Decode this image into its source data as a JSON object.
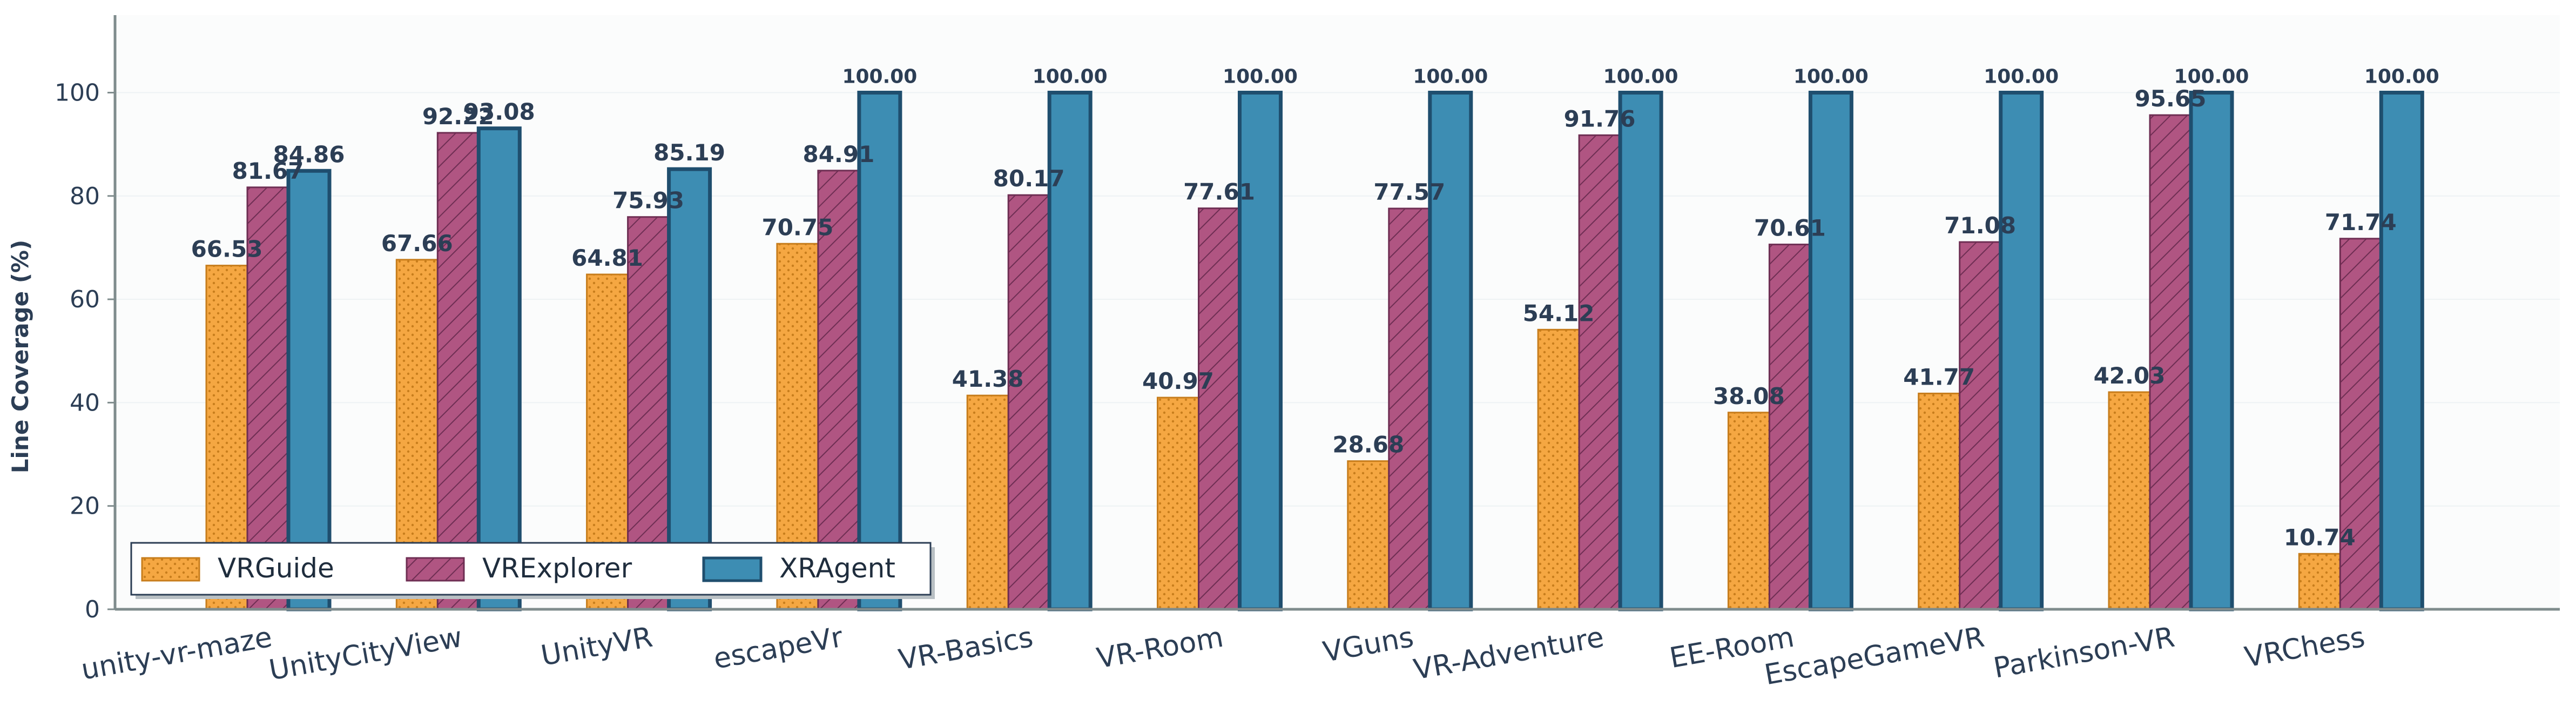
{
  "chart_data": {
    "type": "bar",
    "title": "",
    "xlabel": "",
    "ylabel": "Line Coverage (%)",
    "ylim": [
      0,
      115
    ],
    "yticks": [
      0,
      20,
      40,
      60,
      80,
      100
    ],
    "grid": "horizontal",
    "legend_position": "lower-left",
    "categories": [
      "unity-vr-maze",
      "UnityCityView",
      "UnityVR",
      "escapeVr",
      "VR-Basics",
      "VR-Room",
      "VGuns",
      "VR-Adventure",
      "EE-Room",
      "EscapeGameVR",
      "Parkinson-VR",
      "VRChess"
    ],
    "series": [
      {
        "name": "VRGuide",
        "color": "#f5a742",
        "stroke": "#c77d1c",
        "pattern": "dots",
        "values": [
          66.53,
          67.66,
          64.81,
          70.75,
          41.38,
          40.97,
          28.68,
          54.12,
          38.08,
          41.77,
          42.03,
          10.74
        ],
        "labels": [
          "66.53",
          "67.66",
          "64.81",
          "70.75",
          "41.38",
          "40.97",
          "28.68",
          "54.12",
          "38.08",
          "41.77",
          "42.03",
          "10.74"
        ]
      },
      {
        "name": "VRExplorer",
        "color": "#b05582",
        "stroke": "#6e2e53",
        "pattern": "hatch",
        "values": [
          81.67,
          92.22,
          75.93,
          84.91,
          80.17,
          77.61,
          77.57,
          91.76,
          70.61,
          71.08,
          95.65,
          71.74
        ],
        "labels": [
          "81.67",
          "92.22",
          "75.93",
          "84.91",
          "80.17",
          "77.61",
          "77.57",
          "91.76",
          "70.61",
          "71.08",
          "95.65",
          "71.74"
        ]
      },
      {
        "name": "XRAgent",
        "color": "#3d8db3",
        "stroke": "#1f4e6e",
        "pattern": "solid",
        "values": [
          84.86,
          93.08,
          85.19,
          100,
          100,
          100,
          100,
          100,
          100,
          100,
          100,
          100
        ],
        "labels": [
          "84.86",
          "93.08",
          "85.19",
          "100.00",
          "100.00",
          "100.00",
          "100.00",
          "100.00",
          "100.00",
          "100.00",
          "100.00",
          "100.00"
        ]
      }
    ],
    "colors": {
      "text": "#2c3e55",
      "axis": "#7f8c8d",
      "grid": "#edf2f4",
      "background": "#fbfcfc"
    }
  }
}
